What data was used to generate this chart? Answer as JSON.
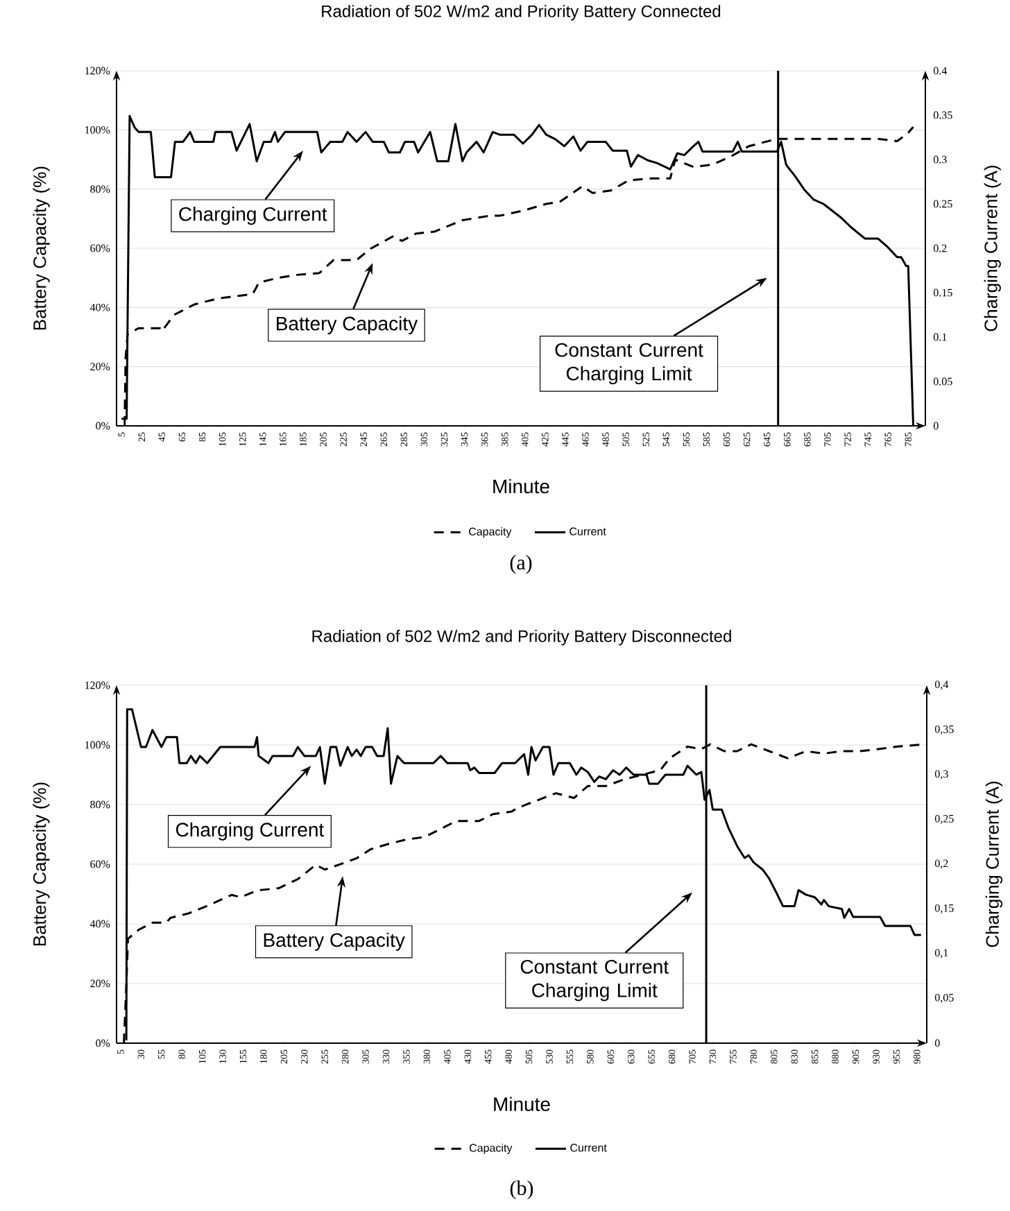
{
  "chart_data": [
    {
      "type": "line",
      "title": "Radiation of 502 W/m2 and Priority Battery Connected",
      "xlabel": "Minute",
      "ylabel": "Battery Capacity (%)",
      "y2label": "Charging Current (A)",
      "xlim": [
        0,
        802
      ],
      "xticks": [
        5,
        25,
        45,
        65,
        85,
        105,
        125,
        145,
        165,
        185,
        205,
        225,
        245,
        265,
        285,
        305,
        325,
        345,
        365,
        385,
        405,
        425,
        445,
        465,
        485,
        505,
        525,
        545,
        565,
        585,
        605,
        625,
        645,
        665,
        685,
        705,
        725,
        745,
        765,
        785
      ],
      "ylim": [
        0,
        120
      ],
      "yticks": [
        {
          "value": 0,
          "label": "0%"
        },
        {
          "value": 20,
          "label": "20%"
        },
        {
          "value": 40,
          "label": "40%"
        },
        {
          "value": 60,
          "label": "60%"
        },
        {
          "value": 80,
          "label": "80%"
        },
        {
          "value": 100,
          "label": "100%"
        },
        {
          "value": 120,
          "label": "120%"
        }
      ],
      "y2lim": [
        0,
        0.4
      ],
      "y2ticks": [
        0,
        0.05,
        0.1,
        0.15,
        0.2,
        0.25,
        0.3,
        0.35,
        0.4
      ],
      "grid": "y",
      "legend": "bottom",
      "series": [
        {
          "name": "Capacity",
          "color": "#000000",
          "line_style": "dashed",
          "x": [
            8,
            9,
            11,
            22,
            43,
            45,
            57,
            77,
            100,
            123,
            135,
            139,
            141,
            160,
            178,
            201,
            215,
            238,
            251,
            274,
            283,
            297,
            315,
            325,
            343,
            370,
            380,
            403,
            426,
            440,
            462,
            472,
            490,
            508,
            531,
            549,
            554,
            572,
            591,
            609,
            627,
            655,
            673,
            701,
            728,
            755,
            774,
            785,
            790
          ],
          "values": [
            0,
            23,
            31,
            33,
            33,
            32,
            37.5,
            41,
            43,
            44,
            44.5,
            47,
            48.4,
            50,
            51,
            51.6,
            56,
            56,
            59.7,
            64,
            62.5,
            65,
            65.6,
            67,
            69.5,
            71,
            71,
            72.7,
            75,
            75.8,
            81,
            78.7,
            79.5,
            83,
            83.6,
            83.6,
            90,
            87.5,
            88.3,
            91,
            94.5,
            97,
            97,
            97,
            97,
            97,
            96.2,
            99,
            101
          ]
        },
        {
          "name": "Current",
          "color": "#000000",
          "line_style": "solid",
          "axis": "y2",
          "x": [
            5,
            10,
            13,
            18,
            22,
            34,
            38,
            54,
            58,
            66,
            73,
            77,
            96,
            98,
            114,
            119,
            132,
            139,
            146,
            153,
            157,
            160,
            167,
            199,
            203,
            212,
            224,
            229,
            238,
            247,
            254,
            265,
            270,
            281,
            286,
            295,
            299,
            311,
            318,
            329,
            336,
            343,
            347,
            357,
            364,
            373,
            380,
            394,
            403,
            412,
            419,
            426,
            435,
            444,
            453,
            460,
            467,
            485,
            492,
            506,
            510,
            517,
            527,
            536,
            549,
            556,
            563,
            572,
            577,
            581,
            611,
            616,
            620,
            655,
            659,
            664,
            673,
            682,
            691,
            701,
            710,
            719,
            728,
            742,
            755,
            765,
            774,
            778,
            783,
            785,
            790
          ],
          "values": [
            0.008,
            0.008,
            0.349,
            0.336,
            0.331,
            0.331,
            0.28,
            0.28,
            0.32,
            0.32,
            0.331,
            0.32,
            0.32,
            0.331,
            0.331,
            0.31,
            0.34,
            0.298,
            0.32,
            0.32,
            0.331,
            0.32,
            0.331,
            0.331,
            0.308,
            0.32,
            0.32,
            0.331,
            0.32,
            0.331,
            0.32,
            0.32,
            0.308,
            0.308,
            0.32,
            0.32,
            0.308,
            0.331,
            0.298,
            0.298,
            0.34,
            0.298,
            0.308,
            0.32,
            0.308,
            0.331,
            0.328,
            0.328,
            0.318,
            0.328,
            0.339,
            0.328,
            0.323,
            0.315,
            0.326,
            0.31,
            0.32,
            0.32,
            0.31,
            0.31,
            0.292,
            0.305,
            0.299,
            0.296,
            0.289,
            0.307,
            0.305,
            0.315,
            0.32,
            0.309,
            0.309,
            0.32,
            0.309,
            0.309,
            0.32,
            0.294,
            0.281,
            0.266,
            0.255,
            0.25,
            0.242,
            0.234,
            0.224,
            0.211,
            0.211,
            0.201,
            0.19,
            0.19,
            0.18,
            0.18,
            0
          ]
        }
      ],
      "ref_lines": [
        {
          "axis": "x",
          "value": 656,
          "color": "#000000"
        }
      ],
      "annotations": [
        "Charging Current",
        "Battery Capacity",
        "Constant Current Charging Limit",
        "(a)"
      ]
    },
    {
      "type": "line",
      "title": "Radiation of 502 W/m2 and Priority Battery Disconnected",
      "xlabel": "Minute",
      "ylabel": "Battery Capacity (%)",
      "y2label": "Charging Current (A)",
      "xlim": [
        0,
        992
      ],
      "xticks": [
        5,
        30,
        55,
        80,
        105,
        130,
        155,
        180,
        205,
        230,
        255,
        280,
        305,
        330,
        355,
        380,
        405,
        430,
        455,
        480,
        505,
        530,
        555,
        580,
        605,
        630,
        655,
        680,
        705,
        730,
        755,
        780,
        805,
        830,
        855,
        880,
        905,
        930,
        955,
        980
      ],
      "ylim": [
        0,
        120
      ],
      "yticks": [
        {
          "value": 0,
          "label": "0%"
        },
        {
          "value": 20,
          "label": "20%"
        },
        {
          "value": 40,
          "label": "40%"
        },
        {
          "value": 60,
          "label": "60%"
        },
        {
          "value": 80,
          "label": "80%"
        },
        {
          "value": 100,
          "label": "100%"
        },
        {
          "value": 120,
          "label": "120%"
        }
      ],
      "y2lim": [
        0,
        0.4
      ],
      "y2ticks": [
        0,
        {
          "value": 0.05,
          "label": "0,05"
        },
        {
          "value": 0.1,
          "label": "0,1"
        },
        {
          "value": 0.15,
          "label": "0,15"
        },
        {
          "value": 0.2,
          "label": "0,2"
        },
        {
          "value": 0.25,
          "label": "0,25"
        },
        {
          "value": 0.3,
          "label": "0,3"
        },
        {
          "value": 0.35,
          "label": "0,35"
        },
        {
          "value": 0.4,
          "label": "0,4"
        }
      ],
      "grid": "y",
      "legend": "bottom",
      "series": [
        {
          "name": "Capacity",
          "color": "#000000",
          "line_style": "dashed",
          "x": [
            9,
            12,
            14,
            27,
            44,
            61,
            66,
            88,
            111,
            127,
            141,
            152,
            172,
            199,
            222,
            244,
            255,
            272,
            294,
            311,
            333,
            355,
            377,
            388,
            416,
            444,
            461,
            483,
            494,
            516,
            538,
            560,
            577,
            599,
            622,
            644,
            666,
            677,
            699,
            716,
            727,
            744,
            760,
            777,
            799,
            822,
            844,
            866,
            888,
            910,
            933,
            955,
            988
          ],
          "values": [
            0,
            19.4,
            35,
            38,
            40.4,
            40.4,
            42,
            43.5,
            46,
            48,
            49.7,
            48.9,
            51.2,
            52,
            55,
            59.8,
            58.2,
            59.8,
            62,
            65,
            66.8,
            68.3,
            69.1,
            70.6,
            74.5,
            74.5,
            76.8,
            77.6,
            79.2,
            81.5,
            83.8,
            82.2,
            86.2,
            86.2,
            88.5,
            90,
            91.6,
            95.5,
            99.4,
            98.6,
            100.2,
            97.9,
            97.9,
            100.2,
            97.9,
            95.5,
            97.9,
            97.1,
            97.9,
            97.9,
            98.6,
            99.4,
            100.2
          ]
        },
        {
          "name": "Current",
          "color": "#000000",
          "line_style": "solid",
          "axis": "y2",
          "x": [
            12,
            13,
            19,
            30,
            36,
            44,
            55,
            61,
            74,
            77,
            86,
            91,
            97,
            102,
            111,
            127,
            169,
            172,
            174,
            186,
            191,
            216,
            222,
            230,
            244,
            249,
            255,
            262,
            269,
            274,
            283,
            288,
            294,
            299,
            305,
            313,
            319,
            327,
            332,
            336,
            344,
            352,
            388,
            397,
            405,
            430,
            433,
            438,
            444,
            463,
            472,
            488,
            499,
            504,
            508,
            513,
            522,
            530,
            535,
            541,
            555,
            563,
            569,
            577,
            585,
            591,
            599,
            608,
            616,
            624,
            633,
            649,
            652,
            663,
            672,
            694,
            699,
            710,
            716,
            720,
            726,
            730,
            741,
            749,
            760,
            769,
            774,
            780,
            791,
            799,
            808,
            816,
            830,
            835,
            844,
            855,
            863,
            866,
            872,
            888,
            891,
            897,
            902,
            935,
            941,
            972,
            977,
            985
          ],
          "values": [
            0.003,
            0.373,
            0.373,
            0.331,
            0.331,
            0.35,
            0.331,
            0.342,
            0.342,
            0.313,
            0.313,
            0.321,
            0.313,
            0.321,
            0.313,
            0.331,
            0.331,
            0.342,
            0.321,
            0.313,
            0.321,
            0.321,
            0.331,
            0.321,
            0.321,
            0.331,
            0.29,
            0.331,
            0.331,
            0.31,
            0.331,
            0.321,
            0.328,
            0.321,
            0.331,
            0.331,
            0.321,
            0.321,
            0.352,
            0.29,
            0.321,
            0.313,
            0.313,
            0.321,
            0.313,
            0.313,
            0.305,
            0.308,
            0.302,
            0.302,
            0.313,
            0.313,
            0.323,
            0.3,
            0.331,
            0.316,
            0.331,
            0.331,
            0.3,
            0.313,
            0.313,
            0.3,
            0.308,
            0.303,
            0.292,
            0.298,
            0.295,
            0.305,
            0.3,
            0.308,
            0.3,
            0.3,
            0.29,
            0.29,
            0.3,
            0.3,
            0.31,
            0.3,
            0.303,
            0.272,
            0.283,
            0.261,
            0.261,
            0.241,
            0.22,
            0.207,
            0.21,
            0.202,
            0.194,
            0.184,
            0.168,
            0.153,
            0.153,
            0.171,
            0.166,
            0.163,
            0.155,
            0.16,
            0.153,
            0.15,
            0.14,
            0.15,
            0.141,
            0.141,
            0.131,
            0.131,
            0.121,
            0.121
          ]
        }
      ],
      "ref_lines": [
        {
          "axis": "x",
          "value": 722,
          "color": "#000000"
        }
      ],
      "annotations": [
        "Charging Current",
        "Battery Capacity",
        "Constant Current Charging Limit",
        "(b)"
      ]
    }
  ]
}
